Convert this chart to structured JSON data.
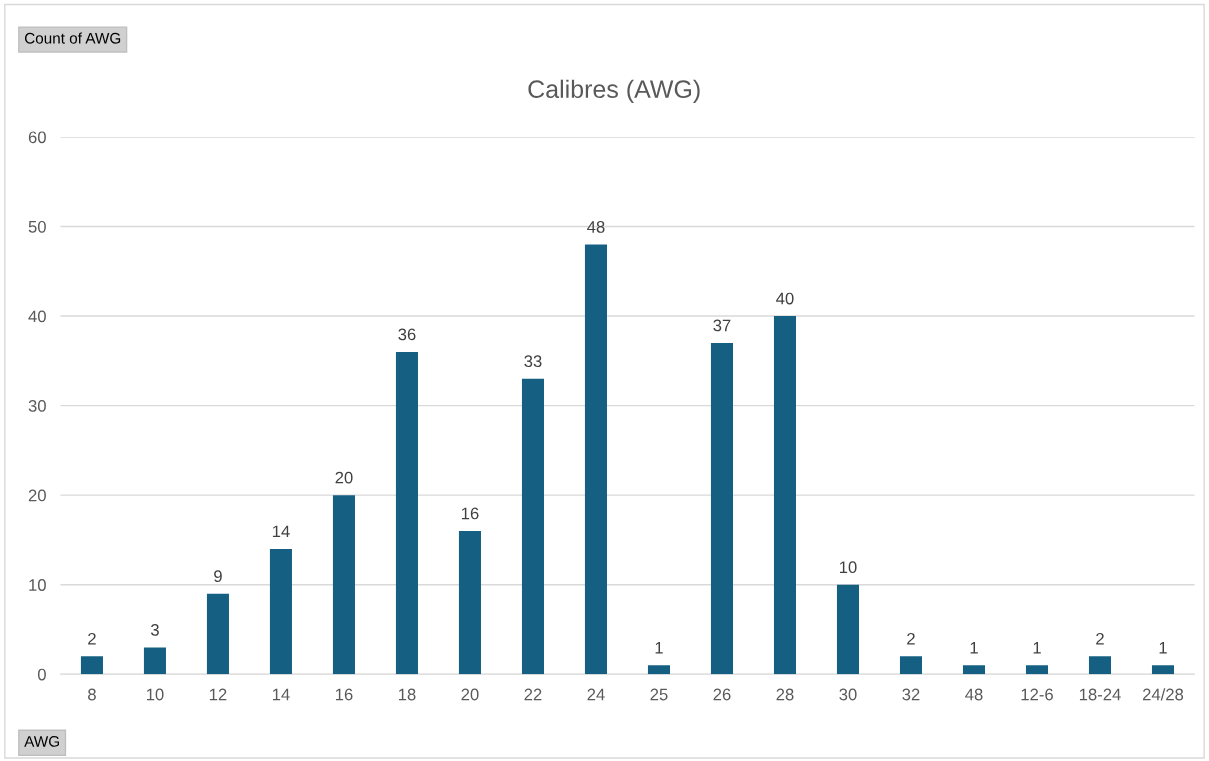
{
  "chart_data": {
    "type": "bar",
    "title": "Calibres (AWG)",
    "categories": [
      "8",
      "10",
      "12",
      "14",
      "16",
      "18",
      "20",
      "22",
      "24",
      "25",
      "26",
      "28",
      "30",
      "32",
      "48",
      "12-6",
      "18-24",
      "24/28"
    ],
    "values": [
      2,
      3,
      9,
      14,
      20,
      36,
      16,
      33,
      48,
      1,
      37,
      40,
      10,
      2,
      1,
      1,
      2,
      1
    ],
    "color": "#156082",
    "ylim": [
      0,
      60
    ],
    "yticks": [
      0,
      10,
      20,
      30,
      40,
      50,
      60
    ],
    "grid": "y",
    "data_labels": true,
    "legend": false,
    "annotations": [
      "Count of AWG",
      "AWG"
    ]
  }
}
